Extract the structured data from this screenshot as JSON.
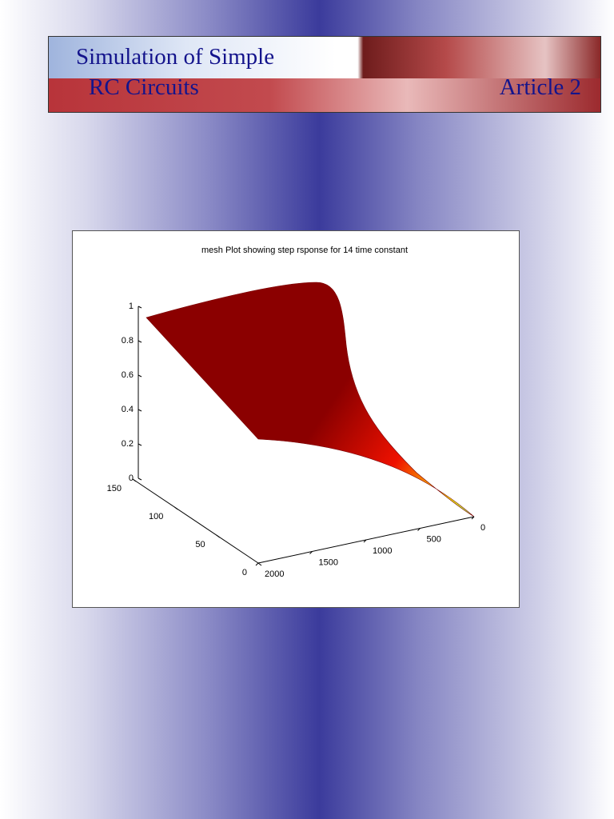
{
  "header": {
    "title_line1": "Simulation of Simple",
    "title_line2": "RC Circuits",
    "article": "Article 2"
  },
  "figure": {
    "title": "mesh Plot showing step rsponse for 14 time constant",
    "zticks": [
      0,
      0.2,
      0.4,
      0.6,
      0.8,
      1
    ],
    "yticks": [
      0,
      50,
      100,
      150
    ],
    "xticks": [
      0,
      500,
      1000,
      1500,
      2000
    ]
  }
}
